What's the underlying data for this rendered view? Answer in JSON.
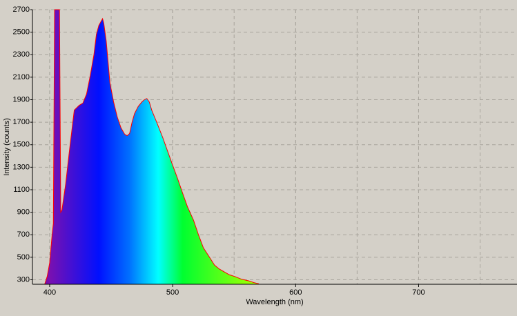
{
  "chart_data": {
    "type": "area",
    "x_label": "Wavelength (nm)",
    "y_label": "Intensity (counts)",
    "x": [
      396,
      398,
      400,
      402,
      403,
      404,
      408,
      409,
      410,
      413,
      416,
      420,
      424,
      427,
      430,
      433,
      436,
      438,
      440,
      442,
      443,
      444,
      446,
      449,
      452,
      455,
      458,
      461,
      463,
      465,
      467,
      469,
      472,
      475,
      477,
      479,
      481,
      483,
      487,
      492,
      496,
      500,
      504,
      508,
      512,
      517,
      521,
      525,
      530,
      534,
      538,
      542,
      546,
      551,
      556,
      562,
      566,
      570
    ],
    "values": [
      262,
      330,
      450,
      700,
      800,
      2700,
      2700,
      900,
      920,
      1150,
      1440,
      1807,
      1850,
      1870,
      1950,
      2113,
      2300,
      2480,
      2560,
      2600,
      2620,
      2580,
      2420,
      2050,
      1880,
      1746,
      1650,
      1593,
      1580,
      1600,
      1700,
      1776,
      1840,
      1880,
      1900,
      1910,
      1880,
      1807,
      1700,
      1562,
      1440,
      1318,
      1200,
      1073,
      950,
      829,
      700,
      584,
      500,
      431,
      395,
      370,
      345,
      327,
      305,
      290,
      275,
      265
    ],
    "color": "#ff0000",
    "xlim": [
      386,
      780
    ],
    "ylim": [
      260,
      2700
    ],
    "xticks": [
      400,
      500,
      600,
      700
    ],
    "yticks": [
      300,
      500,
      700,
      900,
      1100,
      1300,
      1500,
      1700,
      1900,
      2100,
      2300,
      2500,
      2700
    ],
    "grid": true
  }
}
